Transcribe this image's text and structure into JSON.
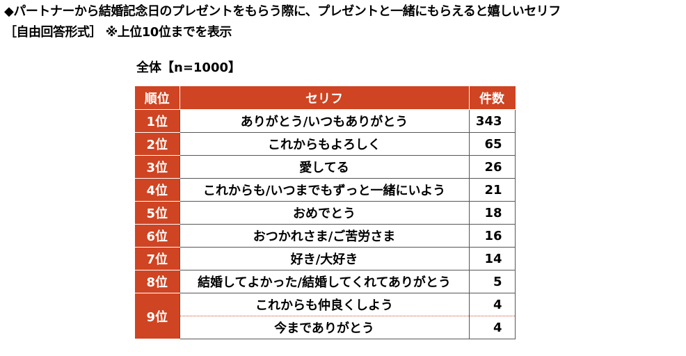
{
  "header": {
    "title": "◆パートナーから結婚記念日のプレゼントをもらう際に、プレゼントと一緒にもらえると嬉しいセリフ",
    "subtitle": "［自由回答形式］ ※上位10位までを表示",
    "sample": "全体【n=1000】"
  },
  "table": {
    "columns": {
      "rank": "順位",
      "line": "セリフ",
      "count": "件数"
    },
    "rows": [
      {
        "rank": "1位",
        "line": "ありがとう/いつもありがとう",
        "count": "343"
      },
      {
        "rank": "2位",
        "line": "これからもよろしく",
        "count": "65"
      },
      {
        "rank": "3位",
        "line": "愛してる",
        "count": "26"
      },
      {
        "rank": "4位",
        "line": "これからも/いつまでもずっと一緒にいよう",
        "count": "21"
      },
      {
        "rank": "5位",
        "line": "おめでとう",
        "count": "18"
      },
      {
        "rank": "6位",
        "line": "おつかれさま/ご苦労さま",
        "count": "16"
      },
      {
        "rank": "7位",
        "line": "好き/大好き",
        "count": "14"
      },
      {
        "rank": "8位",
        "line": "結婚してよかった/結婚してくれてありがとう",
        "count": "5"
      },
      {
        "rank": "9位",
        "line": "これからも仲良くしよう",
        "count": "4"
      },
      {
        "rank": "",
        "line": "今までありがとう",
        "count": "4"
      }
    ]
  },
  "colors": {
    "accent": "#cf4422",
    "header_text": "#ffffff",
    "tie_separator": "dotted #cf4422"
  }
}
